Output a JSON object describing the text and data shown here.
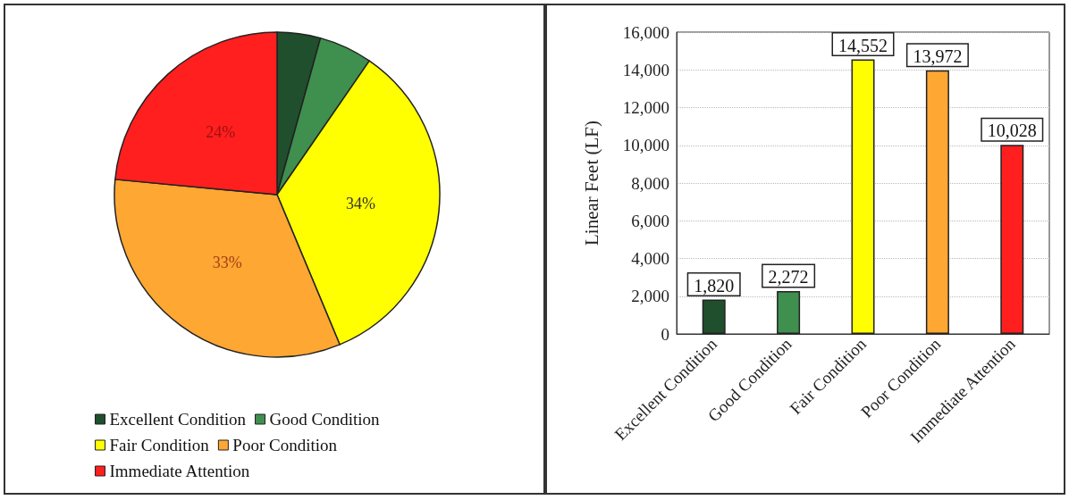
{
  "chart_data": [
    {
      "type": "pie",
      "categories": [
        "Excellent Condition",
        "Good Condition",
        "Fair Condition",
        "Poor Condition",
        "Immediate Attention"
      ],
      "values": [
        4.3,
        5.3,
        34.1,
        32.8,
        23.5
      ],
      "colors": [
        "#1f4f2c",
        "#3f8f4f",
        "#ffff00",
        "#ffa733",
        "#ff1f1f"
      ],
      "value_labels": [
        null,
        null,
        "34%",
        "33%",
        "24%"
      ],
      "legend": "bottom"
    },
    {
      "type": "bar",
      "categories": [
        "Excellent Condition",
        "Good Condition",
        "Fair Condition",
        "Poor Condition",
        "Immediate Attention"
      ],
      "values": [
        1820,
        2272,
        14552,
        13972,
        10028
      ],
      "colors": [
        "#1f4f2c",
        "#3f8f4f",
        "#ffff00",
        "#ffa733",
        "#ff1f1f"
      ],
      "value_labels": [
        "1,820",
        "2,272",
        "14,552",
        "13,972",
        "10,028"
      ],
      "ylabel": "Linear Feet (LF)",
      "ylim": [
        0,
        16000
      ],
      "yticks": [
        0,
        {
          "value": 2000,
          "label": "2,000"
        },
        {
          "value": 4000,
          "label": "4,000"
        },
        {
          "value": 6000,
          "label": "6,000"
        },
        {
          "value": 8000,
          "label": "8,000"
        },
        {
          "value": 10000,
          "label": "10,000"
        },
        {
          "value": 12000,
          "label": "12,000"
        },
        {
          "value": 14000,
          "label": "14,000"
        },
        {
          "value": 16000,
          "label": "16,000"
        }
      ],
      "grid": "y",
      "legend": false
    }
  ]
}
